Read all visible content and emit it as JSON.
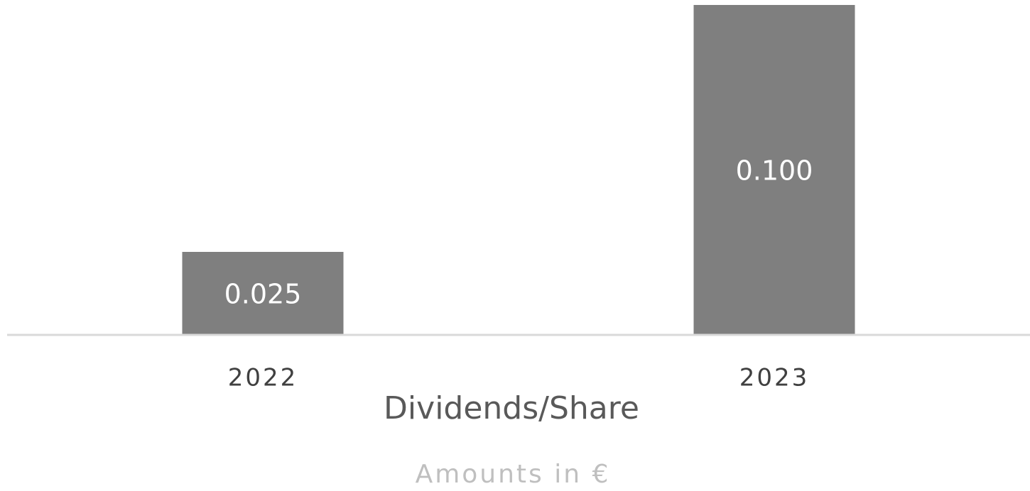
{
  "chart_data": {
    "type": "bar",
    "title": "Dividends/Share",
    "subtitle": "Amounts in €",
    "categories": [
      "2022",
      "2023"
    ],
    "values": [
      0.025,
      0.1
    ],
    "value_labels": [
      "0.025",
      "0.100"
    ],
    "color": "#7f7f7f"
  }
}
